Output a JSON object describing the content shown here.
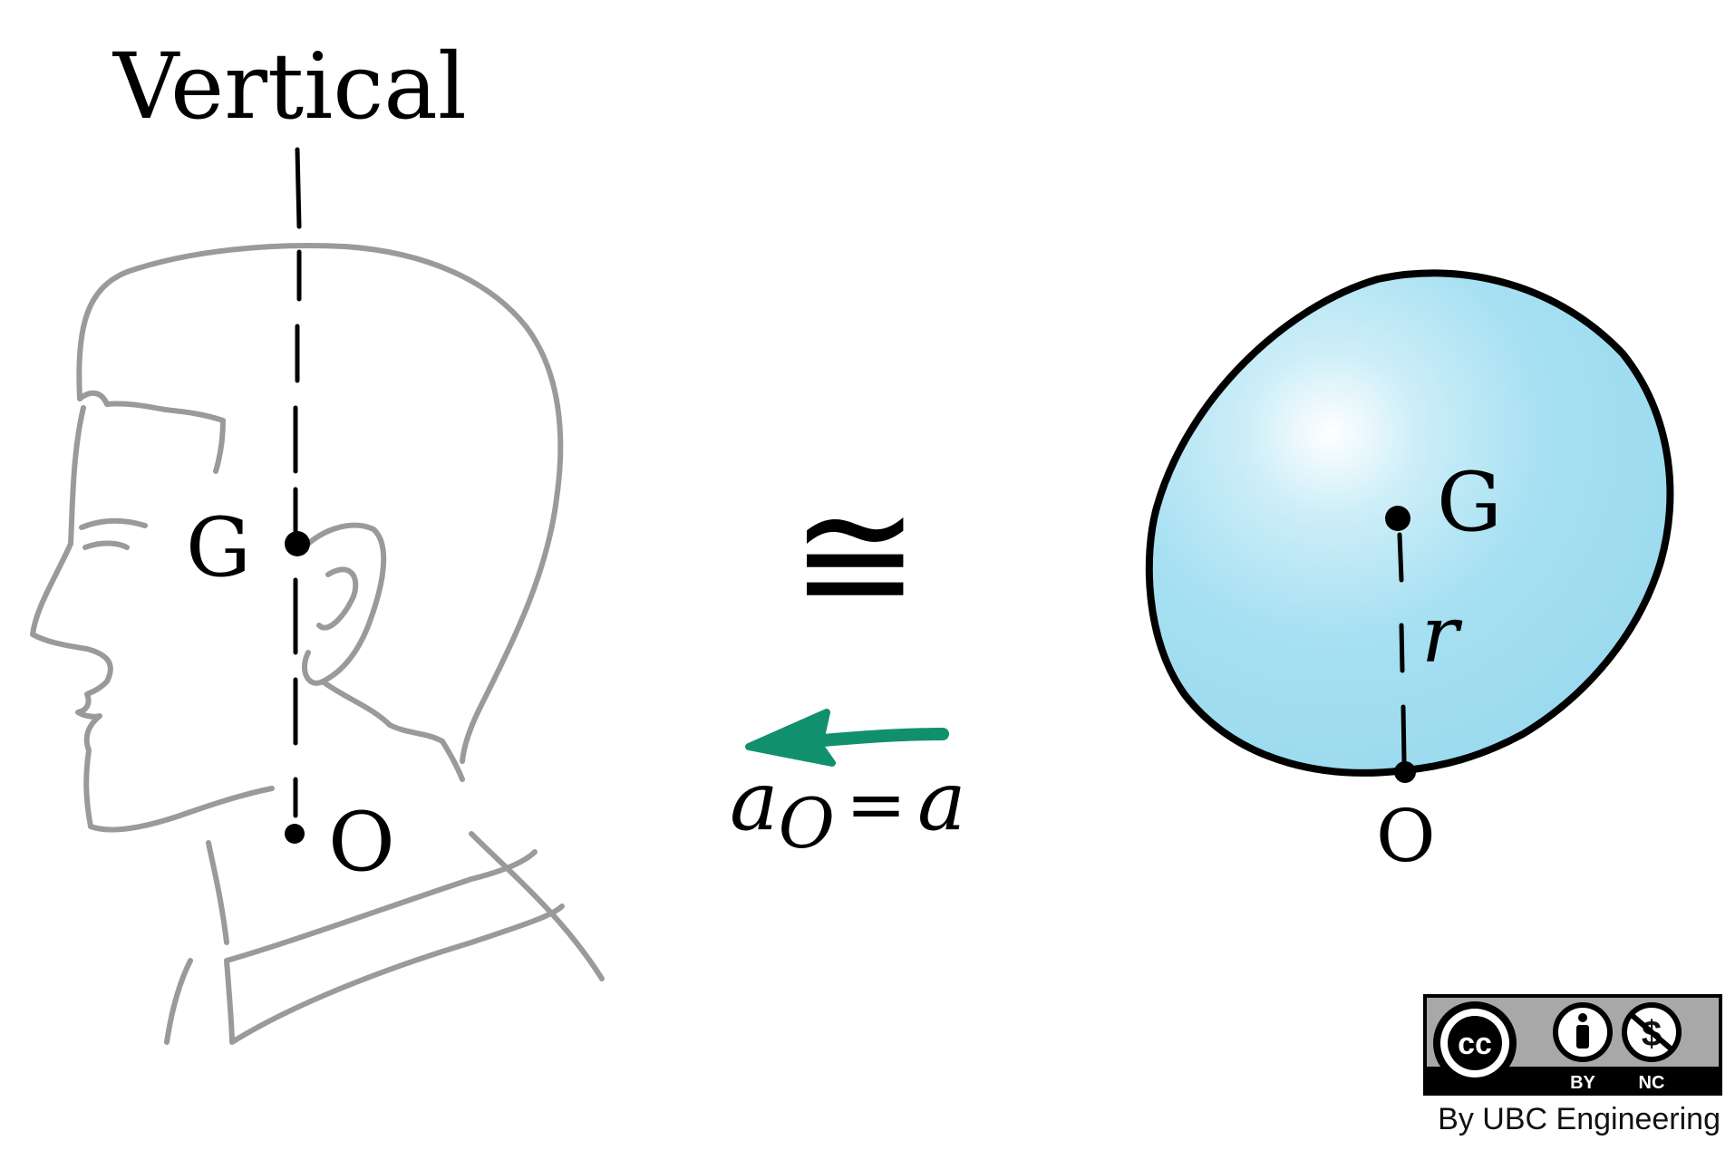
{
  "labels": {
    "vertical": "Vertical",
    "head_g": "G",
    "head_o": "O",
    "equiv_symbol": "≅",
    "accel_label": "a",
    "accel_sub": "O",
    "accel_equals": "=",
    "accel_rhs": "a",
    "sphere_g": "G",
    "sphere_r": "r",
    "sphere_o": "O"
  },
  "license": {
    "cc": "cc",
    "by": "BY",
    "nc": "NC",
    "credit": "By UBC Engineering"
  },
  "colors": {
    "head_outline": "#9a9a9a",
    "sphere_fill": "#a6e0f2",
    "sphere_highlight": "#ffffff",
    "arrow": "#11906e",
    "ink": "#000000",
    "badge_bg": "#a8a8a8"
  },
  "icons": {
    "cc_logo": "creative-commons-icon",
    "by": "attribution-person-icon",
    "nc": "noncommercial-dollar-icon"
  }
}
